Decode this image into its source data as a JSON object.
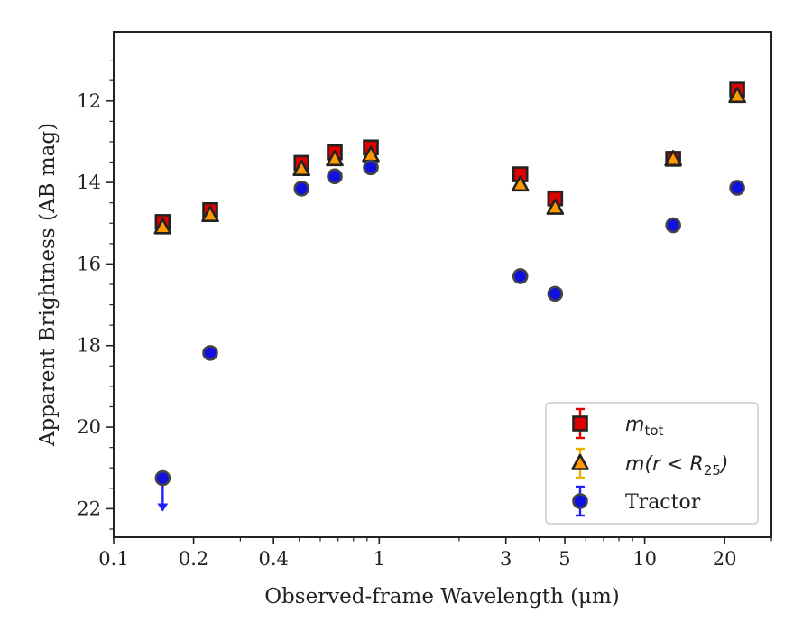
{
  "chart_data": {
    "type": "scatter",
    "xlabel": "Observed-frame Wavelength (μm)",
    "ylabel": "Apparent Brightness (AB mag)",
    "x_scale": "log",
    "xlim": [
      0.1,
      30
    ],
    "ylim": [
      22.7,
      10.3
    ],
    "y_inverted": true,
    "x_ticks": [
      {
        "value": 0.1,
        "label": "0.1"
      },
      {
        "value": 0.2,
        "label": "0.2"
      },
      {
        "value": 0.4,
        "label": "0.4"
      },
      {
        "value": 1,
        "label": "1"
      },
      {
        "value": 3,
        "label": "3"
      },
      {
        "value": 5,
        "label": "5"
      },
      {
        "value": 10,
        "label": "10"
      },
      {
        "value": 20,
        "label": "20"
      }
    ],
    "y_ticks": [
      {
        "value": 12,
        "label": "12"
      },
      {
        "value": 14,
        "label": "14"
      },
      {
        "value": 16,
        "label": "16"
      },
      {
        "value": 18,
        "label": "18"
      },
      {
        "value": 20,
        "label": "20"
      },
      {
        "value": 22,
        "label": "22"
      }
    ],
    "grid": false,
    "legend_position": "bottom-right",
    "series": [
      {
        "name": "m_tot",
        "legend_label": {
          "main": "m",
          "sub": "tot",
          "suffix": ""
        },
        "marker": "square",
        "fill": "#e00000",
        "edge": "#222222",
        "errcolor": "#e00000",
        "points": [
          {
            "x": 0.153,
            "y": 14.97
          },
          {
            "x": 0.231,
            "y": 14.68
          },
          {
            "x": 0.51,
            "y": 13.52
          },
          {
            "x": 0.68,
            "y": 13.26
          },
          {
            "x": 0.93,
            "y": 13.14
          },
          {
            "x": 3.4,
            "y": 13.8
          },
          {
            "x": 4.6,
            "y": 14.39
          },
          {
            "x": 12.8,
            "y": 13.42
          },
          {
            "x": 22.3,
            "y": 11.72
          }
        ]
      },
      {
        "name": "m(r<R25)",
        "legend_label": {
          "main": "m(r < R",
          "sub": "25",
          "suffix": ")"
        },
        "marker": "triangle",
        "fill": "#ff9900",
        "edge": "#222222",
        "errcolor": "#f0b000",
        "points": [
          {
            "x": 0.153,
            "y": 15.1
          },
          {
            "x": 0.231,
            "y": 14.8
          },
          {
            "x": 0.51,
            "y": 13.67
          },
          {
            "x": 0.68,
            "y": 13.43
          },
          {
            "x": 0.93,
            "y": 13.33
          },
          {
            "x": 3.4,
            "y": 14.05
          },
          {
            "x": 4.6,
            "y": 14.62
          },
          {
            "x": 12.8,
            "y": 13.43
          },
          {
            "x": 22.3,
            "y": 11.88
          }
        ]
      },
      {
        "name": "Tractor",
        "legend_label": {
          "main": "Tractor",
          "sub": "",
          "suffix": ""
        },
        "marker": "circle",
        "fill": "#1010e0",
        "edge": "#444444",
        "errcolor": "#2020ff",
        "points": [
          {
            "x": 0.153,
            "y": 21.25,
            "upper_limit": true
          },
          {
            "x": 0.231,
            "y": 18.18
          },
          {
            "x": 0.51,
            "y": 14.15
          },
          {
            "x": 0.68,
            "y": 13.85
          },
          {
            "x": 0.93,
            "y": 13.63
          },
          {
            "x": 3.4,
            "y": 16.3
          },
          {
            "x": 4.6,
            "y": 16.73
          },
          {
            "x": 12.8,
            "y": 15.05
          },
          {
            "x": 22.3,
            "y": 14.13
          }
        ]
      }
    ]
  }
}
